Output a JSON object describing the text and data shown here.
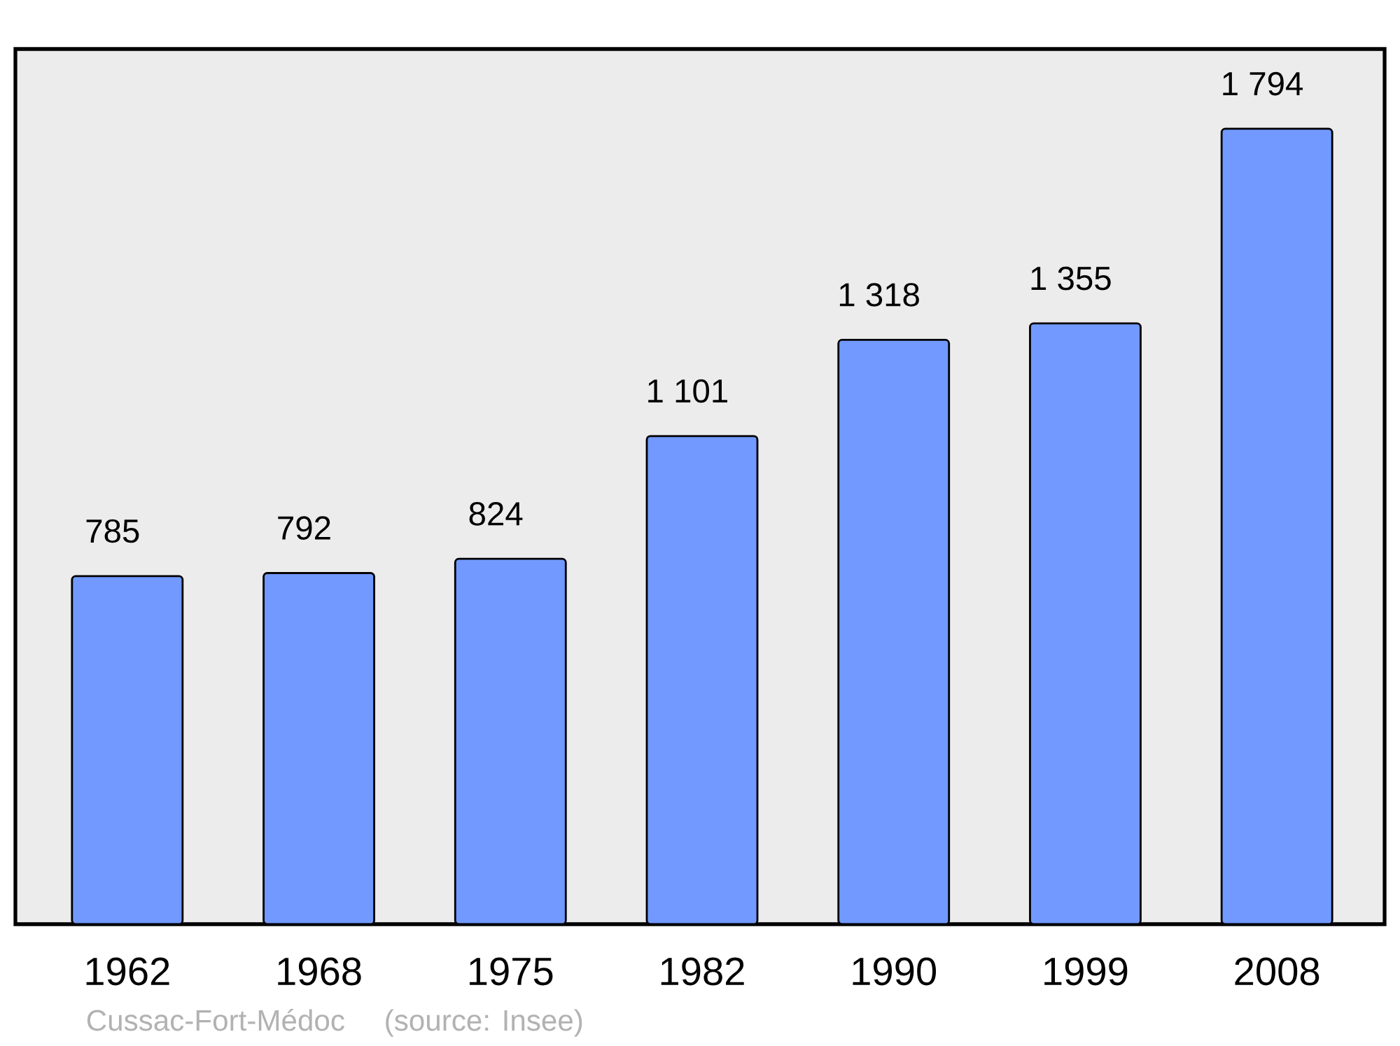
{
  "chart_data": {
    "type": "bar",
    "categories": [
      "1962",
      "1968",
      "1975",
      "1982",
      "1990",
      "1999",
      "2008"
    ],
    "values": [
      785,
      792,
      824,
      1101,
      1318,
      1355,
      1794
    ],
    "value_labels": [
      "785",
      "792",
      "824",
      "1 101",
      "1 318",
      "1 355",
      "1 794"
    ],
    "color": "#7299ff",
    "ylim": [
      0,
      1974
    ],
    "annotations": [
      "Cussac-Fort-Médoc",
      "(source: Insee)"
    ]
  }
}
